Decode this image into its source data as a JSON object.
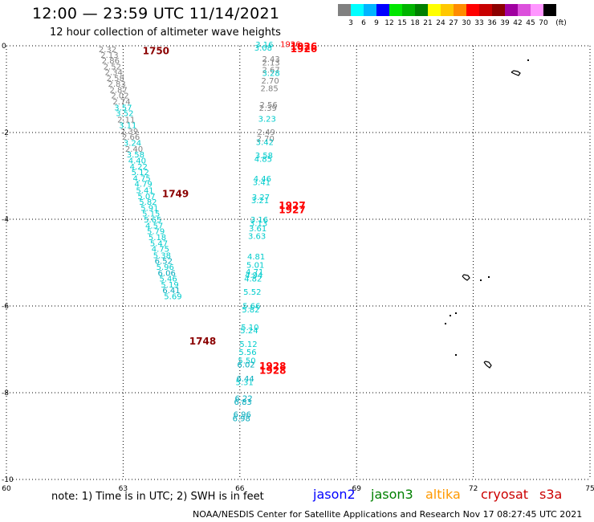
{
  "header": {
    "title": "12:00  —  23:59 UTC 11/14/2021",
    "subtitle": "12 hour collection of altimeter wave heights"
  },
  "colorbar": {
    "unit_label": "(ft)",
    "colors": [
      "#808080",
      "#00ffff",
      "#00b4ff",
      "#0000ff",
      "#00e600",
      "#00b400",
      "#008000",
      "#ffff00",
      "#ffc800",
      "#ff8c00",
      "#ff0000",
      "#c80000",
      "#8c0000",
      "#a000a0",
      "#dc50dc",
      "#ff96ff",
      "#000000"
    ],
    "labels": [
      "3",
      "6",
      "9",
      "12",
      "15",
      "18",
      "21",
      "24",
      "27",
      "30",
      "33",
      "36",
      "39",
      "42",
      "45",
      "70"
    ]
  },
  "axes": {
    "x_ticks": [
      "60",
      "63",
      "66",
      "69",
      "72",
      "75"
    ],
    "y_ticks": [
      "0",
      "-2",
      "-4",
      "-6",
      "-8",
      "-10"
    ],
    "x_range": [
      60,
      75
    ],
    "y_range": [
      0,
      -10
    ]
  },
  "note": "note:  1) Time is in UTC;  2) SWH is in feet",
  "legend": [
    {
      "name": "jason2",
      "color": "#0000ff"
    },
    {
      "name": "jason3",
      "color": "#008000"
    },
    {
      "name": "altika",
      "color": "#ff9900"
    },
    {
      "name": "cryosat",
      "color": "#cc0000"
    },
    {
      "name": "s3a",
      "color": "#cc0000"
    }
  ],
  "footer": "NOAA/NESDIS Center for Satellite Applications and Research    Nov 17 08:27:45 UTC 2021",
  "time_labels": [
    {
      "text": "1750",
      "lon": 63.5,
      "lat": -0.1,
      "color": "#8b0000"
    },
    {
      "text": "1749",
      "lon": 64.0,
      "lat": -3.4,
      "color": "#8b0000"
    },
    {
      "text": "1748",
      "lon": 64.7,
      "lat": -6.8,
      "color": "#8b0000"
    },
    {
      "text": "1926",
      "lon": 67.3,
      "lat": -0.06,
      "color": "#ff0000"
    },
    {
      "text": "1926",
      "lon": 67.3,
      "lat": 0.0,
      "color": "#ff0000"
    },
    {
      "text": "1927",
      "lon": 67.0,
      "lat": -3.77,
      "color": "#ff0000"
    },
    {
      "text": "1927",
      "lon": 67.0,
      "lat": -3.67,
      "color": "#ff0000"
    },
    {
      "text": "1928",
      "lon": 66.5,
      "lat": -7.47,
      "color": "#ff0000"
    },
    {
      "text": "1928",
      "lon": 66.5,
      "lat": -7.37,
      "color": "#ff0000"
    }
  ],
  "track_left": [
    {
      "v": "2.32",
      "lon": 62.6,
      "lat": -0.07,
      "c": "#808080"
    },
    {
      "v": "2.13",
      "lon": 62.65,
      "lat": -0.2,
      "c": "#808080"
    },
    {
      "v": "2.86",
      "lon": 62.68,
      "lat": -0.33,
      "c": "#808080"
    },
    {
      "v": "2.52",
      "lon": 62.72,
      "lat": -0.47,
      "c": "#808080"
    },
    {
      "v": "2.34",
      "lon": 62.76,
      "lat": -0.6,
      "c": "#808080"
    },
    {
      "v": "2.58",
      "lon": 62.8,
      "lat": -0.74,
      "c": "#808080"
    },
    {
      "v": "2.83",
      "lon": 62.84,
      "lat": -0.87,
      "c": "#808080"
    },
    {
      "v": "2.87",
      "lon": 62.88,
      "lat": -1.01,
      "c": "#808080"
    },
    {
      "v": "2.02",
      "lon": 62.92,
      "lat": -1.14,
      "c": "#808080"
    },
    {
      "v": "2.74",
      "lon": 62.96,
      "lat": -1.28,
      "c": "#808080"
    },
    {
      "v": "3.57",
      "lon": 63.0,
      "lat": -1.42,
      "c": "#00cccc"
    },
    {
      "v": "3.52",
      "lon": 63.04,
      "lat": -1.55,
      "c": "#00cccc"
    },
    {
      "v": "2.11",
      "lon": 63.08,
      "lat": -1.69,
      "c": "#808080"
    },
    {
      "v": "3.11",
      "lon": 63.12,
      "lat": -1.82,
      "c": "#00cccc"
    },
    {
      "v": "2.39",
      "lon": 63.16,
      "lat": -1.96,
      "c": "#808080"
    },
    {
      "v": "2.66",
      "lon": 63.2,
      "lat": -2.09,
      "c": "#808080"
    },
    {
      "v": "3.24",
      "lon": 63.24,
      "lat": -2.23,
      "c": "#00cccc"
    },
    {
      "v": "2.40",
      "lon": 63.28,
      "lat": -2.37,
      "c": "#808080"
    },
    {
      "v": "3.58",
      "lon": 63.32,
      "lat": -2.5,
      "c": "#00cccc"
    },
    {
      "v": "4.40",
      "lon": 63.36,
      "lat": -2.64,
      "c": "#00cccc"
    },
    {
      "v": "4.22",
      "lon": 63.4,
      "lat": -2.78,
      "c": "#00cccc"
    },
    {
      "v": "5.12",
      "lon": 63.44,
      "lat": -2.91,
      "c": "#00cccc"
    },
    {
      "v": "4.75",
      "lon": 63.48,
      "lat": -3.05,
      "c": "#00cccc"
    },
    {
      "v": "4.79",
      "lon": 63.52,
      "lat": -3.18,
      "c": "#00cccc"
    },
    {
      "v": "5.41",
      "lon": 63.56,
      "lat": -3.32,
      "c": "#00cccc"
    },
    {
      "v": "5.07",
      "lon": 63.6,
      "lat": -3.46,
      "c": "#00cccc"
    },
    {
      "v": "5.82",
      "lon": 63.64,
      "lat": -3.59,
      "c": "#00cccc"
    },
    {
      "v": "5.91",
      "lon": 63.68,
      "lat": -3.73,
      "c": "#00cccc"
    },
    {
      "v": "5.15",
      "lon": 63.72,
      "lat": -3.86,
      "c": "#00cccc"
    },
    {
      "v": "5.65",
      "lon": 63.76,
      "lat": -4.0,
      "c": "#00cccc"
    },
    {
      "v": "4.57",
      "lon": 63.8,
      "lat": -4.14,
      "c": "#00cccc"
    },
    {
      "v": "5.79",
      "lon": 63.84,
      "lat": -4.27,
      "c": "#00cccc"
    },
    {
      "v": "5.18",
      "lon": 63.88,
      "lat": -4.41,
      "c": "#00cccc"
    },
    {
      "v": "5.47",
      "lon": 63.92,
      "lat": -4.55,
      "c": "#00cccc"
    },
    {
      "v": "4.75",
      "lon": 63.96,
      "lat": -4.68,
      "c": "#00cccc"
    },
    {
      "v": "5.38",
      "lon": 64.0,
      "lat": -4.82,
      "c": "#00cccc"
    },
    {
      "v": "6.52",
      "lon": 64.04,
      "lat": -4.95,
      "c": "#00aabb"
    },
    {
      "v": "5.96",
      "lon": 64.08,
      "lat": -5.09,
      "c": "#00cccc"
    },
    {
      "v": "6.06",
      "lon": 64.12,
      "lat": -5.23,
      "c": "#00aabb"
    },
    {
      "v": "5.46",
      "lon": 64.16,
      "lat": -5.36,
      "c": "#00cccc"
    },
    {
      "v": "5.19",
      "lon": 64.2,
      "lat": -5.5,
      "c": "#00cccc"
    },
    {
      "v": "6.41",
      "lon": 64.24,
      "lat": -5.63,
      "c": "#00aabb"
    },
    {
      "v": "5.69",
      "lon": 64.28,
      "lat": -5.77,
      "c": "#00cccc"
    }
  ],
  "track_right": [
    {
      "v": "3.08",
      "lon": 66.6,
      "lat": -0.04,
      "c": "#00cccc"
    },
    {
      "v": "2.43",
      "lon": 66.8,
      "lat": -0.3,
      "c": "#808080"
    },
    {
      "v": "2.13",
      "lon": 66.8,
      "lat": -0.38,
      "c": "#808080"
    },
    {
      "v": "2.67",
      "lon": 66.8,
      "lat": -0.55,
      "c": "#808080"
    },
    {
      "v": "3.28",
      "lon": 66.8,
      "lat": -0.62,
      "c": "#00cccc"
    },
    {
      "v": "2.70",
      "lon": 66.78,
      "lat": -0.8,
      "c": "#808080"
    },
    {
      "v": "2.85",
      "lon": 66.76,
      "lat": -0.97,
      "c": "#808080"
    },
    {
      "v": "2.56",
      "lon": 66.74,
      "lat": -1.35,
      "c": "#808080"
    },
    {
      "v": "2.39",
      "lon": 66.72,
      "lat": -1.43,
      "c": "#808080"
    },
    {
      "v": "3.23",
      "lon": 66.7,
      "lat": -1.68,
      "c": "#00cccc"
    },
    {
      "v": "2.49",
      "lon": 66.68,
      "lat": -1.98,
      "c": "#808080"
    },
    {
      "v": "2.70",
      "lon": 66.66,
      "lat": -2.13,
      "c": "#808080"
    },
    {
      "v": "3.42",
      "lon": 66.64,
      "lat": -2.21,
      "c": "#00cccc"
    },
    {
      "v": "3.58",
      "lon": 66.62,
      "lat": -2.52,
      "c": "#00cccc"
    },
    {
      "v": "4.85",
      "lon": 66.6,
      "lat": -2.6,
      "c": "#00cccc"
    },
    {
      "v": "4.46",
      "lon": 66.58,
      "lat": -3.06,
      "c": "#00cccc"
    },
    {
      "v": "3.41",
      "lon": 66.56,
      "lat": -3.14,
      "c": "#00cccc"
    },
    {
      "v": "3.27",
      "lon": 66.54,
      "lat": -3.48,
      "c": "#00cccc"
    },
    {
      "v": "3.21",
      "lon": 66.52,
      "lat": -3.56,
      "c": "#00cccc"
    },
    {
      "v": "3.16",
      "lon": 66.5,
      "lat": -4.0,
      "c": "#00cccc"
    },
    {
      "v": "3.13",
      "lon": 66.48,
      "lat": -4.08,
      "c": "#00cccc"
    },
    {
      "v": "3.61",
      "lon": 66.46,
      "lat": -4.2,
      "c": "#00cccc"
    },
    {
      "v": "3.63",
      "lon": 66.44,
      "lat": -4.38,
      "c": "#00cccc"
    },
    {
      "v": "4.81",
      "lon": 66.42,
      "lat": -4.85,
      "c": "#00cccc"
    },
    {
      "v": "5.01",
      "lon": 66.4,
      "lat": -5.05,
      "c": "#00cccc"
    },
    {
      "v": "4.71",
      "lon": 66.38,
      "lat": -5.2,
      "c": "#00cccc"
    },
    {
      "v": "4.94",
      "lon": 66.36,
      "lat": -5.28,
      "c": "#00cccc"
    },
    {
      "v": "4.82",
      "lon": 66.34,
      "lat": -5.36,
      "c": "#00cccc"
    },
    {
      "v": "5.52",
      "lon": 66.32,
      "lat": -5.67,
      "c": "#00cccc"
    },
    {
      "v": "5.66",
      "lon": 66.3,
      "lat": -5.99,
      "c": "#00cccc"
    },
    {
      "v": "5.82",
      "lon": 66.28,
      "lat": -6.07,
      "c": "#00cccc"
    },
    {
      "v": "5.10",
      "lon": 66.26,
      "lat": -6.48,
      "c": "#00cccc"
    },
    {
      "v": "5.24",
      "lon": 66.24,
      "lat": -6.56,
      "c": "#00cccc"
    },
    {
      "v": "5.12",
      "lon": 66.22,
      "lat": -6.87,
      "c": "#00cccc"
    },
    {
      "v": "5.56",
      "lon": 66.2,
      "lat": -7.06,
      "c": "#00cccc"
    },
    {
      "v": "5.50",
      "lon": 66.18,
      "lat": -7.25,
      "c": "#00cccc"
    },
    {
      "v": "6.02",
      "lon": 66.16,
      "lat": -7.34,
      "c": "#00aabb"
    },
    {
      "v": "6.44",
      "lon": 66.14,
      "lat": -7.67,
      "c": "#00aabb"
    },
    {
      "v": "5.31",
      "lon": 66.12,
      "lat": -7.75,
      "c": "#00cccc"
    },
    {
      "v": "6.22",
      "lon": 66.1,
      "lat": -8.12,
      "c": "#00aabb"
    },
    {
      "v": "6.83",
      "lon": 66.08,
      "lat": -8.2,
      "c": "#00aabb"
    },
    {
      "v": "6.96",
      "lon": 66.06,
      "lat": -8.49,
      "c": "#00aabb"
    },
    {
      "v": "6.98",
      "lon": 66.04,
      "lat": -8.58,
      "c": "#00aabb"
    }
  ],
  "top_extra": [
    {
      "v": "3.16",
      "lon": 66.63,
      "lat": 0.04,
      "c": "#00cccc"
    },
    {
      "v": "1926",
      "lon": 67.3,
      "lat": 0.05,
      "c": "#ff0000"
    }
  ]
}
